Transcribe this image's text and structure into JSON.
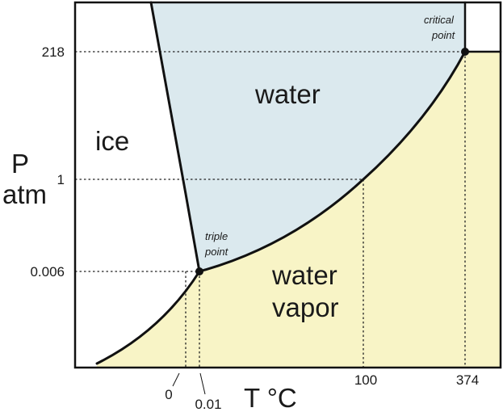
{
  "diagram": {
    "colors": {
      "water_fill": "#dbe9ee",
      "vapor_fill": "#f8f4c6",
      "ice_fill": "#ffffff",
      "line": "#111111"
    },
    "regions": {
      "ice": "ice",
      "water": "water",
      "vapor_line1": "water",
      "vapor_line2": "vapor"
    },
    "axes": {
      "y_title_line1": "P",
      "y_title_line2": "atm",
      "x_title": "T °C",
      "y_ticks": [
        "218",
        "1",
        "0.006"
      ],
      "x_ticks": [
        "0",
        "0.01",
        "100",
        "374"
      ]
    },
    "annotations": {
      "critical_line1": "critical",
      "critical_line2": "point",
      "triple_line1": "triple",
      "triple_line2": "point"
    }
  }
}
